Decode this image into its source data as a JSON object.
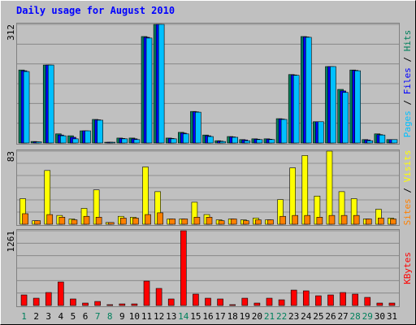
{
  "chart_data": [
    {
      "type": "bar",
      "title": "Daily usage for August 2010",
      "ylim": [
        0,
        312
      ],
      "yticks": [
        312
      ],
      "grid": true,
      "legend_separator": " / ",
      "series": [
        {
          "name": "Hits",
          "color": "#00805c",
          "values": [
            192,
            4,
            205,
            24,
            19,
            32,
            62,
            2,
            13,
            13,
            280,
            312,
            13,
            28,
            83,
            21,
            6,
            17,
            9,
            11,
            11,
            64,
            180,
            280,
            56,
            201,
            141,
            192,
            9,
            24,
            9
          ]
        },
        {
          "name": "Files",
          "color": "#0000ff",
          "values": [
            190,
            3,
            205,
            21,
            15,
            32,
            61,
            2,
            12,
            11,
            278,
            312,
            12,
            26,
            82,
            19,
            5,
            16,
            8,
            10,
            10,
            63,
            179,
            279,
            56,
            201,
            137,
            191,
            8,
            22,
            9
          ]
        },
        {
          "name": "Pages",
          "color": "#00c0ff",
          "values": [
            188,
            3,
            205,
            19,
            11,
            32,
            60,
            2,
            11,
            9,
            276,
            312,
            11,
            24,
            81,
            17,
            4,
            15,
            6,
            9,
            9,
            62,
            178,
            278,
            56,
            201,
            133,
            190,
            6,
            21,
            9
          ]
        }
      ]
    },
    {
      "type": "bar",
      "ylim": [
        0,
        83
      ],
      "yticks": [
        83
      ],
      "grid": true,
      "legend_separator": " / ",
      "series": [
        {
          "name": "Visits",
          "color": "#ffff00",
          "values": [
            29,
            4,
            61,
            10,
            6,
            18,
            39,
            2,
            9,
            8,
            65,
            37,
            6,
            6,
            25,
            11,
            5,
            6,
            5,
            7,
            5,
            28,
            64,
            78,
            32,
            83,
            37,
            29,
            6,
            17,
            7
          ]
        },
        {
          "name": "Sites",
          "color": "#ff8000",
          "values": [
            12,
            4,
            11,
            8,
            5,
            9,
            8,
            2,
            7,
            7,
            11,
            13,
            6,
            6,
            8,
            8,
            4,
            6,
            4,
            5,
            5,
            9,
            10,
            10,
            8,
            10,
            10,
            10,
            6,
            7,
            6
          ]
        }
      ]
    },
    {
      "type": "bar",
      "ylim": [
        0,
        1261
      ],
      "yticks": [
        1261
      ],
      "grid": true,
      "categories": [
        "1",
        "2",
        "3",
        "4",
        "5",
        "6",
        "7",
        "8",
        "9",
        "10",
        "11",
        "12",
        "13",
        "14",
        "15",
        "16",
        "17",
        "18",
        "19",
        "20",
        "21",
        "22",
        "23",
        "24",
        "25",
        "26",
        "27",
        "28",
        "29",
        "30",
        "31"
      ],
      "x_label_colors": [
        "#00805c",
        "#000000",
        "#000000",
        "#000000",
        "#000000",
        "#000000",
        "#00805c",
        "#00805c",
        "#000000",
        "#000000",
        "#000000",
        "#000000",
        "#000000",
        "#00805c",
        "#000000",
        "#000000",
        "#000000",
        "#000000",
        "#000000",
        "#000000",
        "#00805c",
        "#00805c",
        "#000000",
        "#000000",
        "#000000",
        "#000000",
        "#000000",
        "#00805c",
        "#00805c",
        "#000000",
        "#000000"
      ],
      "series": [
        {
          "name": "KBytes",
          "color": "#ff0000",
          "values": [
            178,
            123,
            219,
            397,
            110,
            41,
            68,
            14,
            27,
            27,
            411,
            288,
            110,
            1261,
            192,
            123,
            110,
            14,
            123,
            41,
            123,
            96,
            260,
            247,
            164,
            178,
            219,
            192,
            137,
            41,
            41
          ]
        }
      ]
    }
  ]
}
